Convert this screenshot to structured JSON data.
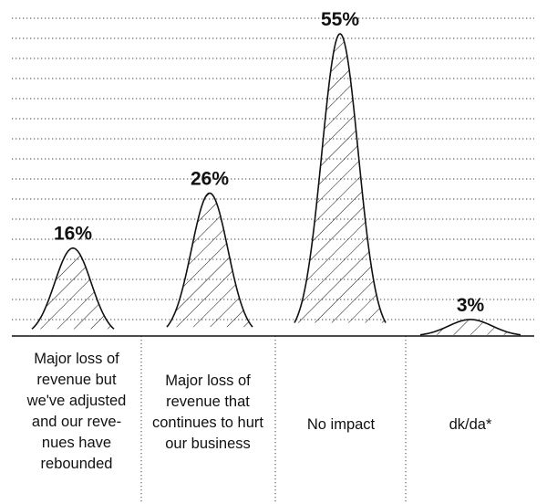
{
  "chart_data": {
    "type": "area",
    "title": "",
    "xlabel": "",
    "ylabel": "",
    "ylim": [
      0,
      55
    ],
    "grid": true,
    "categories": [
      "Major loss of revenue but we've adjusted and our reve- nues have rebounded",
      "Major loss of revenue that continues to hurt our business",
      "No impact",
      "dk/da*"
    ],
    "values": [
      16,
      26,
      55,
      3
    ],
    "value_labels": [
      "16%",
      "26%",
      "55%",
      "3%"
    ]
  },
  "colors": {
    "ink": "#111111",
    "grid": "#444444",
    "background": "#ffffff"
  }
}
